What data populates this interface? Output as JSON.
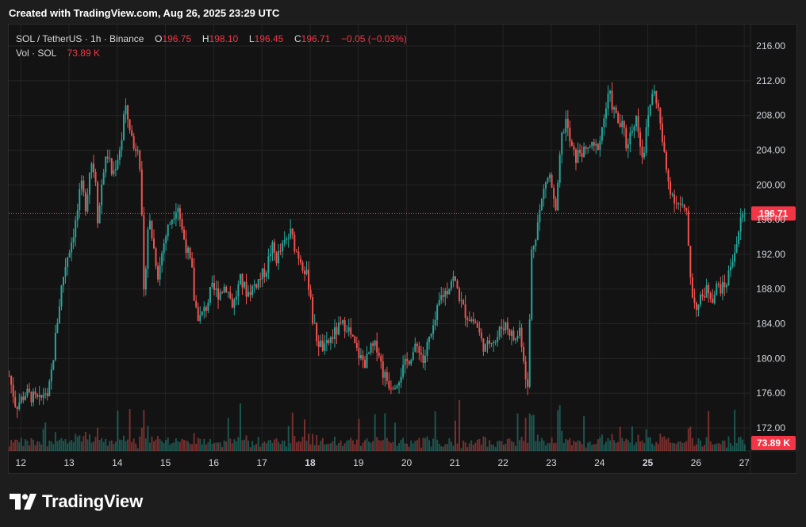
{
  "header": {
    "created_text": "Created with TradingView.com, Aug 26, 2025 23:29 UTC"
  },
  "legend": {
    "symbol": "SOL / TetherUS · 1h · Binance",
    "open_label": "O",
    "open_value": "196.75",
    "high_label": "H",
    "high_value": "198.10",
    "low_label": "L",
    "low_value": "196.45",
    "close_label": "C",
    "close_value": "196.71",
    "change": "−0.05 (−0.03%)",
    "volume_label": "Vol · SOL",
    "volume_value": "73.89 K"
  },
  "footer": {
    "brand": "TradingView"
  },
  "colors": {
    "up": "#26a69a",
    "down": "#ef5350",
    "background": "#131313",
    "grid": "#242424",
    "price_line": "#f23645",
    "text": "#d1d4dc"
  },
  "chart_data": {
    "type": "candlestick",
    "interval": "1h",
    "pair": "SOL / TetherUS",
    "exchange": "Binance",
    "y_axis": {
      "min": 170,
      "max": 218,
      "ticks": [
        "216.00",
        "212.00",
        "208.00",
        "204.00",
        "200.00",
        "196.00",
        "192.00",
        "188.00",
        "184.00",
        "180.00",
        "176.00",
        "172.00"
      ]
    },
    "x_axis": {
      "start_day": 11.75,
      "end_day": 27.08,
      "labels": [
        {
          "day": 12,
          "text": "12",
          "bold": false
        },
        {
          "day": 13,
          "text": "13",
          "bold": false
        },
        {
          "day": 14,
          "text": "14",
          "bold": false
        },
        {
          "day": 15,
          "text": "15",
          "bold": false
        },
        {
          "day": 16,
          "text": "16",
          "bold": false
        },
        {
          "day": 17,
          "text": "17",
          "bold": false
        },
        {
          "day": 18,
          "text": "18",
          "bold": true
        },
        {
          "day": 19,
          "text": "19",
          "bold": false
        },
        {
          "day": 20,
          "text": "20",
          "bold": false
        },
        {
          "day": 21,
          "text": "21",
          "bold": false
        },
        {
          "day": 22,
          "text": "22",
          "bold": false
        },
        {
          "day": 23,
          "text": "23",
          "bold": false
        },
        {
          "day": 24,
          "text": "24",
          "bold": false
        },
        {
          "day": 25,
          "text": "25",
          "bold": true
        },
        {
          "day": 26,
          "text": "26",
          "bold": false
        },
        {
          "day": 27,
          "text": "27",
          "bold": false
        }
      ]
    },
    "last_price": 196.71,
    "last_price_label": "196.71",
    "last_volume_label": "73.89 K",
    "close_path": [
      [
        11.76,
        178.0
      ],
      [
        11.9,
        174.5
      ],
      [
        12.1,
        176.0
      ],
      [
        12.25,
        175.5
      ],
      [
        12.4,
        175.0
      ],
      [
        12.5,
        176.5
      ],
      [
        12.55,
        175.0
      ],
      [
        12.65,
        179.0
      ],
      [
        12.75,
        184.0
      ],
      [
        12.85,
        188.5
      ],
      [
        12.95,
        191.5
      ],
      [
        13.05,
        193.5
      ],
      [
        13.15,
        196.0
      ],
      [
        13.25,
        200.0
      ],
      [
        13.35,
        197.5
      ],
      [
        13.45,
        203.0
      ],
      [
        13.55,
        201.0
      ],
      [
        13.6,
        195.5
      ],
      [
        13.7,
        201.5
      ],
      [
        13.8,
        203.5
      ],
      [
        13.9,
        201.0
      ],
      [
        14.0,
        203.0
      ],
      [
        14.1,
        205.5
      ],
      [
        14.15,
        209.0
      ],
      [
        14.25,
        207.0
      ],
      [
        14.35,
        204.0
      ],
      [
        14.45,
        205.0
      ],
      [
        14.5,
        198.0
      ],
      [
        14.55,
        187.0
      ],
      [
        14.65,
        196.5
      ],
      [
        14.75,
        193.0
      ],
      [
        14.85,
        189.5
      ],
      [
        14.95,
        193.0
      ],
      [
        15.05,
        195.0
      ],
      [
        15.15,
        196.5
      ],
      [
        15.25,
        198.0
      ],
      [
        15.35,
        194.5
      ],
      [
        15.45,
        192.5
      ],
      [
        15.55,
        190.0
      ],
      [
        15.6,
        186.5
      ],
      [
        15.7,
        184.5
      ],
      [
        15.85,
        186.0
      ],
      [
        15.95,
        188.0
      ],
      [
        16.1,
        187.5
      ],
      [
        16.25,
        188.5
      ],
      [
        16.4,
        186.0
      ],
      [
        16.55,
        189.0
      ],
      [
        16.7,
        187.5
      ],
      [
        16.85,
        188.5
      ],
      [
        17.0,
        189.5
      ],
      [
        17.1,
        190.5
      ],
      [
        17.2,
        193.0
      ],
      [
        17.3,
        191.5
      ],
      [
        17.45,
        193.0
      ],
      [
        17.6,
        194.5
      ],
      [
        17.7,
        192.5
      ],
      [
        17.8,
        191.5
      ],
      [
        17.9,
        190.0
      ],
      [
        18.0,
        188.0
      ],
      [
        18.05,
        184.5
      ],
      [
        18.15,
        182.0
      ],
      [
        18.3,
        181.0
      ],
      [
        18.45,
        182.5
      ],
      [
        18.6,
        183.5
      ],
      [
        18.75,
        184.0
      ],
      [
        18.85,
        182.5
      ],
      [
        18.95,
        181.0
      ],
      [
        19.05,
        180.0
      ],
      [
        19.15,
        179.5
      ],
      [
        19.25,
        181.0
      ],
      [
        19.4,
        181.5
      ],
      [
        19.5,
        178.5
      ],
      [
        19.65,
        177.0
      ],
      [
        19.8,
        177.5
      ],
      [
        19.95,
        179.0
      ],
      [
        20.1,
        180.5
      ],
      [
        20.25,
        181.5
      ],
      [
        20.35,
        179.5
      ],
      [
        20.45,
        182.0
      ],
      [
        20.55,
        183.0
      ],
      [
        20.6,
        184.5
      ],
      [
        20.7,
        187.0
      ],
      [
        20.85,
        188.0
      ],
      [
        20.95,
        189.5
      ],
      [
        21.05,
        188.0
      ],
      [
        21.15,
        186.0
      ],
      [
        21.25,
        185.0
      ],
      [
        21.35,
        184.5
      ],
      [
        21.45,
        184.0
      ],
      [
        21.55,
        182.0
      ],
      [
        21.65,
        181.0
      ],
      [
        21.75,
        182.5
      ],
      [
        21.85,
        182.0
      ],
      [
        21.95,
        183.5
      ],
      [
        22.05,
        184.0
      ],
      [
        22.15,
        183.0
      ],
      [
        22.25,
        182.0
      ],
      [
        22.35,
        183.5
      ],
      [
        22.45,
        179.0
      ],
      [
        22.52,
        176.0
      ],
      [
        22.58,
        192.0
      ],
      [
        22.68,
        194.5
      ],
      [
        22.78,
        197.5
      ],
      [
        22.88,
        200.5
      ],
      [
        22.98,
        201.0
      ],
      [
        23.05,
        198.0
      ],
      [
        23.1,
        196.5
      ],
      [
        23.2,
        205.0
      ],
      [
        23.3,
        207.5
      ],
      [
        23.4,
        204.5
      ],
      [
        23.5,
        203.0
      ],
      [
        23.6,
        204.0
      ],
      [
        23.7,
        203.5
      ],
      [
        23.8,
        204.5
      ],
      [
        23.9,
        204.0
      ],
      [
        24.0,
        205.0
      ],
      [
        24.1,
        208.0
      ],
      [
        24.2,
        210.5
      ],
      [
        24.3,
        208.5
      ],
      [
        24.4,
        207.0
      ],
      [
        24.5,
        206.5
      ],
      [
        24.55,
        204.5
      ],
      [
        24.65,
        206.0
      ],
      [
        24.75,
        208.0
      ],
      [
        24.8,
        206.5
      ],
      [
        24.9,
        203.0
      ],
      [
        25.0,
        207.5
      ],
      [
        25.1,
        211.0
      ],
      [
        25.2,
        209.5
      ],
      [
        25.3,
        205.0
      ],
      [
        25.4,
        201.0
      ],
      [
        25.5,
        199.0
      ],
      [
        25.6,
        198.0
      ],
      [
        25.7,
        197.5
      ],
      [
        25.8,
        196.5
      ],
      [
        25.85,
        192.5
      ],
      [
        25.9,
        188.5
      ],
      [
        25.95,
        186.5
      ],
      [
        26.05,
        186.0
      ],
      [
        26.15,
        187.5
      ],
      [
        26.25,
        188.0
      ],
      [
        26.35,
        187.0
      ],
      [
        26.45,
        188.5
      ],
      [
        26.55,
        188.0
      ],
      [
        26.65,
        189.0
      ],
      [
        26.75,
        191.5
      ],
      [
        26.85,
        193.5
      ],
      [
        26.95,
        196.5
      ],
      [
        27.02,
        196.71
      ]
    ],
    "volume_range_label_hint": "volume bars along bottom of pane"
  }
}
